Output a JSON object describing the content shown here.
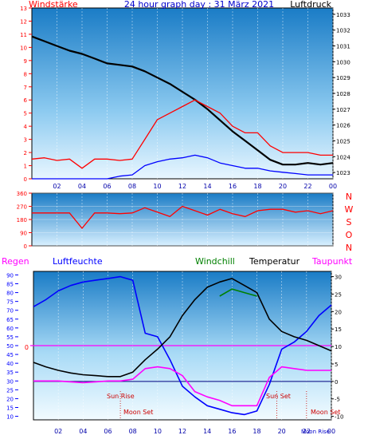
{
  "chart_data": [
    {
      "type": "line",
      "title": "24 hour graph day : 31 März 2021",
      "left_label": "Windstärke",
      "right_label": "Luftdruck",
      "x_ticks": [
        "02",
        "04",
        "06",
        "08",
        "10",
        "12",
        "14",
        "16",
        "18",
        "20",
        "22",
        "00"
      ],
      "y_left_ticks": [
        "0",
        "1",
        "2",
        "3",
        "4",
        "5",
        "6",
        "7",
        "8",
        "9",
        "10",
        "11",
        "12",
        "13"
      ],
      "y_right_ticks": [
        "1023",
        "1024",
        "1025",
        "1026",
        "1027",
        "1028",
        "1029",
        "1030",
        "1031",
        "1032",
        "1033"
      ],
      "ylim_left": [
        0,
        13
      ],
      "ylim_right": [
        1022.6,
        1033.4
      ],
      "series": [
        {
          "name": "Luftdruck",
          "color": "#000000",
          "x": [
            0,
            1,
            2,
            3,
            4,
            5,
            6,
            7,
            8,
            9,
            10,
            11,
            12,
            13,
            14,
            15,
            16,
            17,
            18,
            19,
            20,
            21,
            22,
            23,
            24
          ],
          "y": [
            1031.6,
            1031.3,
            1031.0,
            1030.7,
            1030.5,
            1030.2,
            1029.9,
            1029.8,
            1029.7,
            1029.4,
            1029.0,
            1028.6,
            1028.1,
            1027.6,
            1027.0,
            1026.3,
            1025.6,
            1025.0,
            1024.4,
            1023.8,
            1023.5,
            1023.5,
            1023.6,
            1023.5,
            1023.6
          ]
        },
        {
          "name": "Böen",
          "color": "#ff0000",
          "x": [
            0,
            1,
            2,
            3,
            4,
            5,
            6,
            7,
            8,
            9,
            10,
            11,
            12,
            13,
            14,
            15,
            16,
            17,
            18,
            19,
            20,
            21,
            22,
            23,
            24
          ],
          "y": [
            1.5,
            1.6,
            1.4,
            1.5,
            0.8,
            1.5,
            1.5,
            1.4,
            1.5,
            3,
            4.5,
            5,
            5.5,
            6,
            5.5,
            5,
            4,
            3.5,
            3.5,
            2.5,
            2,
            2,
            2,
            1.8,
            1.8
          ]
        },
        {
          "name": "Wind",
          "color": "#0000ff",
          "x": [
            0,
            1,
            2,
            3,
            4,
            5,
            6,
            7,
            8,
            9,
            10,
            11,
            12,
            13,
            14,
            15,
            16,
            17,
            18,
            19,
            20,
            21,
            22,
            23,
            24
          ],
          "y": [
            0,
            0,
            0,
            0,
            0,
            0,
            0,
            0.2,
            0.3,
            1,
            1.3,
            1.5,
            1.6,
            1.8,
            1.6,
            1.2,
            1,
            0.8,
            0.8,
            0.6,
            0.5,
            0.4,
            0.3,
            0.3,
            0.3
          ]
        }
      ]
    },
    {
      "type": "line",
      "title": "",
      "right_labels": [
        "N",
        "W",
        "S",
        "O",
        "N"
      ],
      "y_ticks": [
        "0",
        "90",
        "180",
        "270",
        "360"
      ],
      "ylim": [
        0,
        360
      ],
      "x_ticks": [
        "02",
        "04",
        "06",
        "08",
        "10",
        "12",
        "14",
        "16",
        "18",
        "20",
        "22",
        "00"
      ],
      "series": [
        {
          "name": "Windrichtung",
          "color": "#ff0000",
          "x": [
            0,
            1,
            2,
            3,
            4,
            5,
            6,
            7,
            8,
            9,
            10,
            11,
            12,
            13,
            14,
            15,
            16,
            17,
            18,
            19,
            20,
            21,
            22,
            23,
            24
          ],
          "y": [
            225,
            225,
            225,
            225,
            120,
            225,
            225,
            220,
            225,
            260,
            230,
            200,
            270,
            240,
            210,
            250,
            220,
            200,
            240,
            250,
            250,
            230,
            240,
            220,
            240
          ]
        }
      ]
    },
    {
      "type": "line",
      "title": "",
      "labels": {
        "regen": "Regen",
        "humidity": "Luftfeuchte",
        "windchill": "Windchill",
        "temperature": "Temperatur",
        "dewpoint": "Taupunkt"
      },
      "y_left_ticks": [
        "10",
        "15",
        "20",
        "25",
        "30",
        "35",
        "40",
        "45",
        "50",
        "55",
        "60",
        "65",
        "70",
        "75",
        "80",
        "85",
        "90"
      ],
      "y_right_ticks": [
        "-10",
        "-5",
        "0",
        "5",
        "10",
        "15",
        "20",
        "25",
        "30"
      ],
      "ylim_left": [
        8,
        92
      ],
      "ylim_right": [
        -11,
        31.5
      ],
      "x_ticks": [
        "02",
        "04",
        "06",
        "08",
        "10",
        "12",
        "14",
        "16",
        "18",
        "20",
        "22",
        "00"
      ],
      "annotations": {
        "zero": "0",
        "sun_rise": "Sun Rise",
        "sun_set": "Sun Set",
        "moon_set_1": "Moon Set",
        "moon_set_2": "Moon Set",
        "moon_rise": "Moon Rise"
      },
      "series": [
        {
          "name": "Luftfeuchte",
          "color": "#0000ff",
          "x": [
            0,
            1,
            2,
            3,
            4,
            5,
            6,
            7,
            8,
            9,
            10,
            11,
            12,
            13,
            14,
            15,
            16,
            17,
            18,
            19,
            20,
            21,
            22,
            23,
            24
          ],
          "y": [
            72,
            76,
            81,
            84,
            86,
            87,
            88,
            89,
            87,
            57,
            55,
            42,
            27,
            21,
            16,
            14,
            12,
            11,
            13,
            28,
            48,
            52,
            58,
            67,
            73
          ]
        },
        {
          "name": "Temperatur",
          "color": "#000000",
          "x": [
            0,
            1,
            2,
            3,
            4,
            5,
            6,
            7,
            8,
            9,
            10,
            11,
            12,
            13,
            14,
            15,
            16,
            17,
            18,
            19,
            20,
            21,
            22,
            23,
            24
          ],
          "y": [
            40.5,
            38,
            36,
            34.5,
            33.5,
            33,
            32.5,
            32.5,
            35,
            42,
            48,
            55,
            67,
            76,
            83,
            86,
            88,
            84,
            80,
            65,
            58,
            55,
            53,
            50,
            47
          ]
        },
        {
          "name": "Windchill",
          "color": "#008000",
          "x": [
            15,
            16,
            17,
            18
          ],
          "y": [
            78,
            82,
            80,
            78
          ]
        },
        {
          "name": "Taupunkt",
          "color": "#ff00ff",
          "x": [
            0,
            1,
            2,
            3,
            4,
            5,
            6,
            7,
            8,
            9,
            10,
            11,
            12,
            13,
            14,
            15,
            16,
            17,
            18,
            19,
            20,
            21,
            22,
            23,
            24
          ],
          "y": [
            30,
            30,
            30,
            29.5,
            29,
            29.5,
            30,
            30,
            31,
            37,
            38,
            37,
            33,
            24,
            21,
            19,
            16,
            16,
            16,
            32,
            38,
            37,
            36,
            36,
            36
          ]
        }
      ]
    }
  ]
}
